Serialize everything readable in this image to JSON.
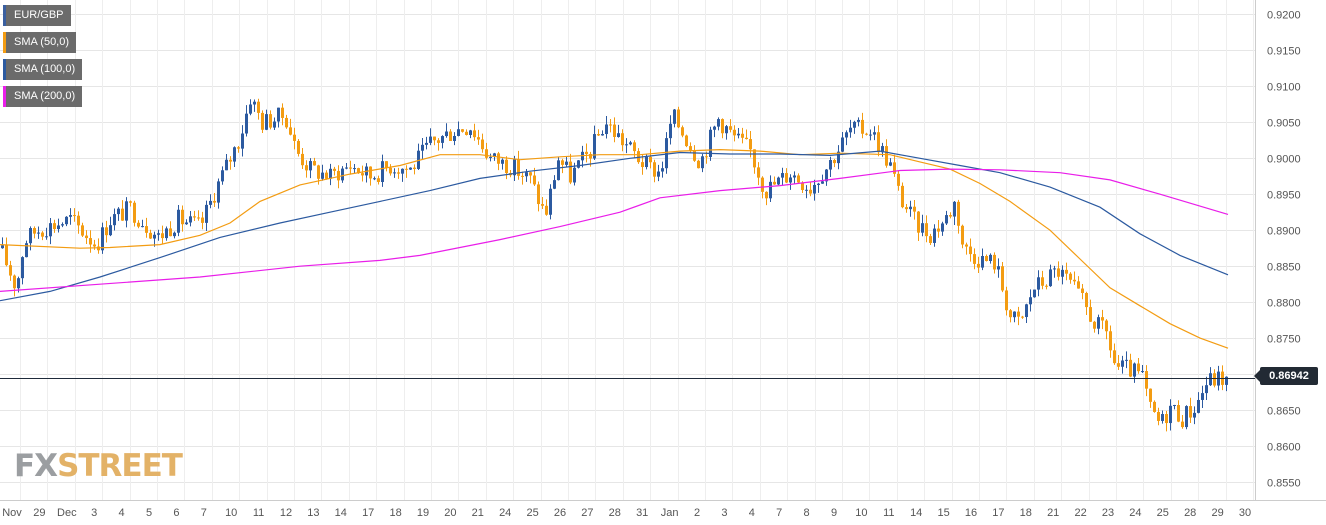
{
  "legend": [
    {
      "label": "EUR/GBP",
      "color": "#3a5fa0"
    },
    {
      "label": "SMA (50,0)",
      "color": "#f39c12"
    },
    {
      "label": "SMA (100,0)",
      "color": "#2c5aa0"
    },
    {
      "label": "SMA (200,0)",
      "color": "#e91ee9"
    }
  ],
  "logo": {
    "fx": "FX",
    "street": "STREET"
  },
  "current_price": "0.86942",
  "colors": {
    "bull": "#2c5aa0",
    "bear": "#f39c12",
    "sma50": "#f39c12",
    "sma100": "#2c5aa0",
    "sma200": "#e91ee9",
    "grid": "#e6e6e6",
    "price_line": "#1e2a3a"
  },
  "chart_data": {
    "type": "candlestick",
    "symbol": "EUR/GBP",
    "ylim": [
      0.8525,
      0.922
    ],
    "y_ticks": [
      "0.9200",
      "0.9150",
      "0.9100",
      "0.9050",
      "0.9000",
      "0.8950",
      "0.8900",
      "0.8850",
      "0.8800",
      "0.8750",
      "0.8700",
      "0.8650",
      "0.8600",
      "0.8550"
    ],
    "x_ticks": [
      "Nov",
      "29",
      "Dec",
      "3",
      "4",
      "5",
      "6",
      "7",
      "10",
      "11",
      "12",
      "13",
      "14",
      "17",
      "18",
      "19",
      "20",
      "21",
      "24",
      "25",
      "26",
      "27",
      "28",
      "31",
      "Jan",
      "2",
      "3",
      "4",
      "7",
      "8",
      "9",
      "10",
      "11",
      "14",
      "15",
      "16",
      "17",
      "18",
      "21",
      "22",
      "23",
      "24",
      "25",
      "28",
      "29",
      "30"
    ],
    "grid": true,
    "current_price": 0.86942,
    "series": [
      {
        "name": "EUR/GBP",
        "kind": "candles",
        "anchors": [
          [
            0,
            0.8875
          ],
          [
            16,
            0.882
          ],
          [
            24,
            0.8885
          ],
          [
            36,
            0.89
          ],
          [
            70,
            0.8915
          ],
          [
            96,
            0.888
          ],
          [
            110,
            0.8915
          ],
          [
            130,
            0.893
          ],
          [
            158,
            0.889
          ],
          [
            178,
            0.8915
          ],
          [
            200,
            0.8905
          ],
          [
            218,
            0.8965
          ],
          [
            240,
            0.903
          ],
          [
            250,
            0.9085
          ],
          [
            262,
            0.905
          ],
          [
            285,
            0.906
          ],
          [
            296,
            0.901
          ],
          [
            310,
            0.8985
          ],
          [
            330,
            0.8975
          ],
          [
            350,
            0.899
          ],
          [
            370,
            0.8975
          ],
          [
            390,
            0.899
          ],
          [
            410,
            0.8985
          ],
          [
            430,
            0.902
          ],
          [
            455,
            0.904
          ],
          [
            470,
            0.9045
          ],
          [
            490,
            0.9
          ],
          [
            510,
            0.899
          ],
          [
            530,
            0.897
          ],
          [
            545,
            0.892
          ],
          [
            558,
            0.9
          ],
          [
            570,
            0.8975
          ],
          [
            590,
            0.901
          ],
          [
            605,
            0.905
          ],
          [
            625,
            0.902
          ],
          [
            645,
            0.899
          ],
          [
            660,
            0.898
          ],
          [
            672,
            0.906
          ],
          [
            685,
            0.903
          ],
          [
            700,
            0.8995
          ],
          [
            718,
            0.9055
          ],
          [
            733,
            0.903
          ],
          [
            750,
            0.901
          ],
          [
            765,
            0.8955
          ],
          [
            790,
            0.898
          ],
          [
            810,
            0.896
          ],
          [
            830,
            0.8995
          ],
          [
            850,
            0.904
          ],
          [
            870,
            0.904
          ],
          [
            890,
            0.899
          ],
          [
            900,
            0.8945
          ],
          [
            915,
            0.891
          ],
          [
            930,
            0.8895
          ],
          [
            945,
            0.8915
          ],
          [
            955,
            0.894
          ],
          [
            963,
            0.8875
          ],
          [
            980,
            0.886
          ],
          [
            995,
            0.8855
          ],
          [
            1010,
            0.878
          ],
          [
            1020,
            0.877
          ],
          [
            1033,
            0.882
          ],
          [
            1045,
            0.883
          ],
          [
            1057,
            0.8845
          ],
          [
            1070,
            0.8825
          ],
          [
            1082,
            0.88
          ],
          [
            1095,
            0.877
          ],
          [
            1107,
            0.8755
          ],
          [
            1115,
            0.871
          ],
          [
            1130,
            0.8705
          ],
          [
            1142,
            0.8695
          ],
          [
            1150,
            0.865
          ],
          [
            1160,
            0.863
          ],
          [
            1170,
            0.8655
          ],
          [
            1182,
            0.864
          ],
          [
            1195,
            0.8655
          ],
          [
            1207,
            0.869
          ],
          [
            1220,
            0.8695
          ],
          [
            1228,
            0.869
          ]
        ]
      },
      {
        "name": "SMA (50,0)",
        "kind": "line",
        "points": [
          [
            0,
            0.888
          ],
          [
            80,
            0.8875
          ],
          [
            110,
            0.8876
          ],
          [
            160,
            0.888
          ],
          [
            200,
            0.8893
          ],
          [
            230,
            0.891
          ],
          [
            260,
            0.894
          ],
          [
            300,
            0.8963
          ],
          [
            350,
            0.8978
          ],
          [
            400,
            0.899
          ],
          [
            440,
            0.9005
          ],
          [
            480,
            0.9005
          ],
          [
            520,
            0.8998
          ],
          [
            560,
            0.9002
          ],
          [
            600,
            0.9005
          ],
          [
            640,
            0.9005
          ],
          [
            680,
            0.901
          ],
          [
            720,
            0.9012
          ],
          [
            760,
            0.901
          ],
          [
            800,
            0.9005
          ],
          [
            840,
            0.9007
          ],
          [
            890,
            0.9005
          ],
          [
            920,
            0.8995
          ],
          [
            950,
            0.8985
          ],
          [
            980,
            0.8965
          ],
          [
            1010,
            0.894
          ],
          [
            1050,
            0.89
          ],
          [
            1080,
            0.886
          ],
          [
            1110,
            0.882
          ],
          [
            1140,
            0.8795
          ],
          [
            1170,
            0.877
          ],
          [
            1200,
            0.875
          ],
          [
            1228,
            0.8736
          ]
        ]
      },
      {
        "name": "SMA (100,0)",
        "kind": "line",
        "points": [
          [
            0,
            0.8802
          ],
          [
            50,
            0.8815
          ],
          [
            100,
            0.8835
          ],
          [
            160,
            0.8862
          ],
          [
            220,
            0.889
          ],
          [
            280,
            0.891
          ],
          [
            330,
            0.8925
          ],
          [
            380,
            0.894
          ],
          [
            430,
            0.8955
          ],
          [
            480,
            0.8972
          ],
          [
            530,
            0.8982
          ],
          [
            580,
            0.899
          ],
          [
            630,
            0.9
          ],
          [
            680,
            0.9008
          ],
          [
            730,
            0.9006
          ],
          [
            780,
            0.9006
          ],
          [
            830,
            0.9004
          ],
          [
            880,
            0.901
          ],
          [
            920,
            0.9
          ],
          [
            960,
            0.899
          ],
          [
            1000,
            0.898
          ],
          [
            1050,
            0.896
          ],
          [
            1100,
            0.8932
          ],
          [
            1140,
            0.8895
          ],
          [
            1180,
            0.8865
          ],
          [
            1228,
            0.8838
          ]
        ]
      },
      {
        "name": "SMA (200,0)",
        "kind": "line",
        "points": [
          [
            0,
            0.8815
          ],
          [
            100,
            0.8825
          ],
          [
            200,
            0.8835
          ],
          [
            300,
            0.885
          ],
          [
            380,
            0.8858
          ],
          [
            420,
            0.8865
          ],
          [
            500,
            0.8887
          ],
          [
            560,
            0.8905
          ],
          [
            620,
            0.8925
          ],
          [
            660,
            0.8945
          ],
          [
            720,
            0.8955
          ],
          [
            780,
            0.8962
          ],
          [
            840,
            0.8972
          ],
          [
            900,
            0.8983
          ],
          [
            950,
            0.8985
          ],
          [
            1000,
            0.8984
          ],
          [
            1060,
            0.898
          ],
          [
            1110,
            0.897
          ],
          [
            1160,
            0.895
          ],
          [
            1228,
            0.8922
          ]
        ]
      }
    ]
  }
}
